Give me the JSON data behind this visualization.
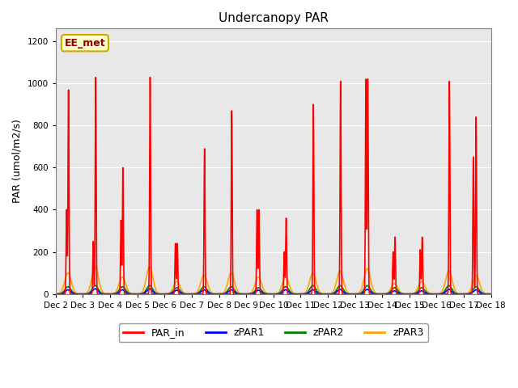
{
  "title": "Undercanopy PAR",
  "ylabel": "PAR (umol/m2/s)",
  "ylim": [
    0,
    1260
  ],
  "yticks": [
    0,
    200,
    400,
    600,
    800,
    1000,
    1200
  ],
  "annotation_text": "EE_met",
  "annotation_facecolor": "#ffffcc",
  "annotation_edgecolor": "#ccaa00",
  "bg_color": "#e8e8e8",
  "line_colors": {
    "PAR_in": "red",
    "zPAR1": "blue",
    "zPAR2": "green",
    "zPAR3": "orange"
  },
  "n_days": 16,
  "start_day": 2,
  "par_in_data": [
    {
      "day": 0,
      "peaks": [
        {
          "t": 0.4,
          "v": 400
        },
        {
          "t": 0.47,
          "v": 970
        }
      ]
    },
    {
      "day": 1,
      "peaks": [
        {
          "t": 0.38,
          "v": 250
        },
        {
          "t": 0.47,
          "v": 1030
        }
      ]
    },
    {
      "day": 2,
      "peaks": [
        {
          "t": 0.4,
          "v": 350
        },
        {
          "t": 0.47,
          "v": 600
        }
      ]
    },
    {
      "day": 3,
      "peaks": [
        {
          "t": 0.47,
          "v": 1030
        }
      ]
    },
    {
      "day": 4,
      "peaks": [
        {
          "t": 0.4,
          "v": 240
        },
        {
          "t": 0.47,
          "v": 240
        }
      ]
    },
    {
      "day": 5,
      "peaks": [
        {
          "t": 0.47,
          "v": 690
        }
      ]
    },
    {
      "day": 6,
      "peaks": [
        {
          "t": 0.47,
          "v": 870
        }
      ]
    },
    {
      "day": 7,
      "peaks": [
        {
          "t": 0.4,
          "v": 400
        },
        {
          "t": 0.47,
          "v": 400
        }
      ]
    },
    {
      "day": 8,
      "peaks": [
        {
          "t": 0.4,
          "v": 200
        },
        {
          "t": 0.47,
          "v": 360
        }
      ]
    },
    {
      "day": 9,
      "peaks": [
        {
          "t": 0.47,
          "v": 900
        }
      ]
    },
    {
      "day": 10,
      "peaks": [
        {
          "t": 0.47,
          "v": 1010
        }
      ]
    },
    {
      "day": 11,
      "peaks": [
        {
          "t": 0.4,
          "v": 1020
        },
        {
          "t": 0.47,
          "v": 1020
        }
      ]
    },
    {
      "day": 12,
      "peaks": [
        {
          "t": 0.4,
          "v": 200
        },
        {
          "t": 0.47,
          "v": 270
        }
      ]
    },
    {
      "day": 13,
      "peaks": [
        {
          "t": 0.4,
          "v": 210
        },
        {
          "t": 0.47,
          "v": 270
        }
      ]
    },
    {
      "day": 14,
      "peaks": [
        {
          "t": 0.47,
          "v": 1010
        }
      ]
    },
    {
      "day": 15,
      "peaks": [
        {
          "t": 0.35,
          "v": 650
        },
        {
          "t": 0.45,
          "v": 840
        }
      ]
    }
  ],
  "zpar3_peaks": [
    100,
    130,
    80,
    130,
    60,
    90,
    100,
    80,
    80,
    100,
    110,
    120,
    50,
    60,
    110,
    90
  ],
  "zpar2_peaks": [
    35,
    40,
    35,
    40,
    30,
    35,
    35,
    30,
    35,
    40,
    40,
    40,
    30,
    30,
    40,
    35
  ],
  "zpar1_peaks": [
    20,
    25,
    20,
    25,
    18,
    20,
    20,
    18,
    20,
    20,
    22,
    22,
    15,
    15,
    22,
    20
  ]
}
